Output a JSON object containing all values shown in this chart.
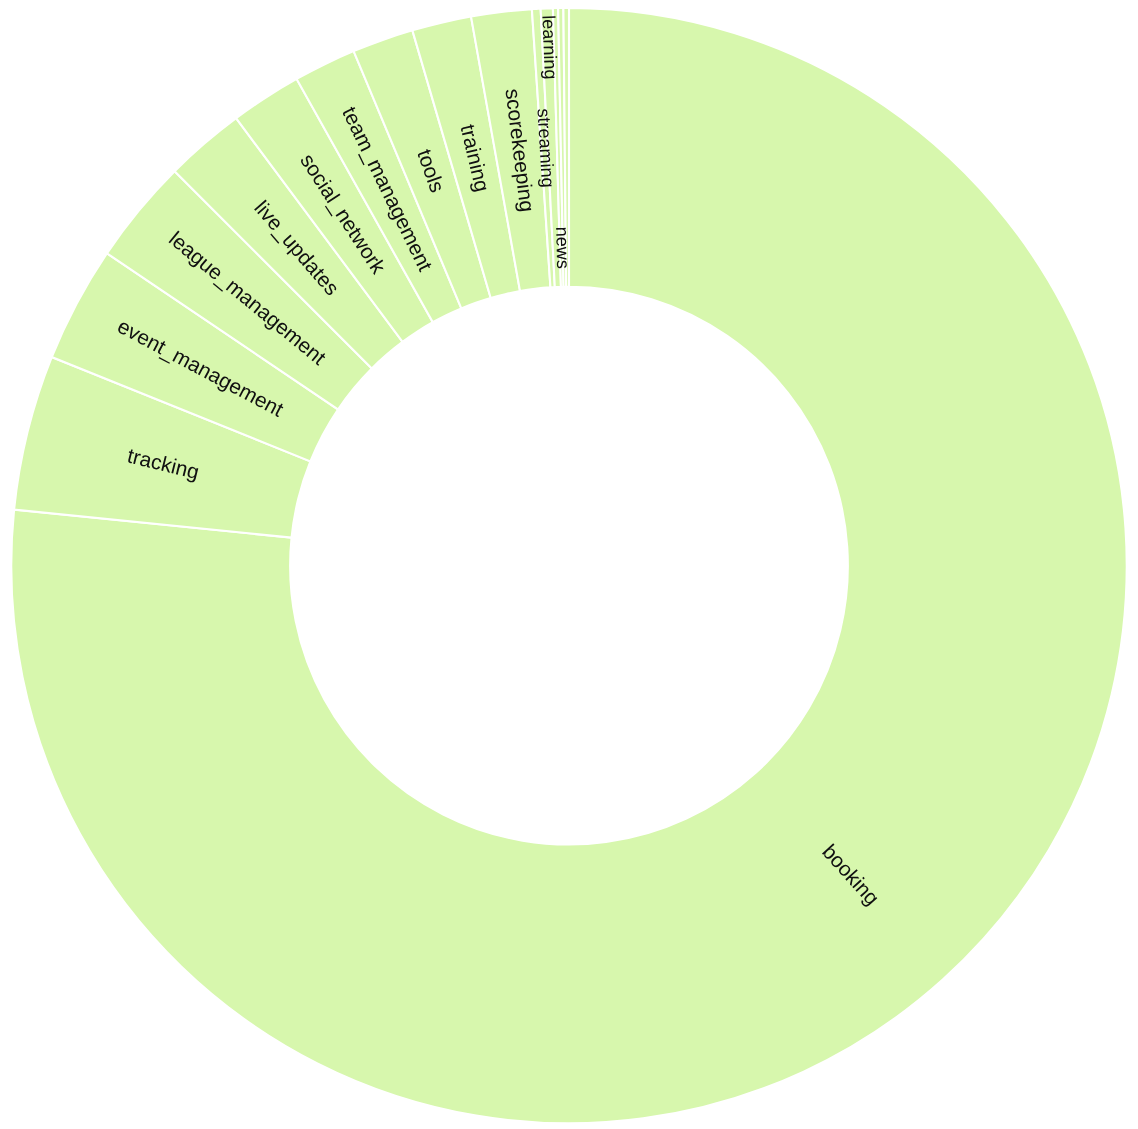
{
  "chart_data": {
    "type": "donut",
    "categories": [
      "booking",
      "tracking",
      "event_management",
      "league_management",
      "live_updates",
      "social_network",
      "team_management",
      "tools",
      "training",
      "scorekeeping",
      "streaming",
      "learning",
      "news",
      null,
      null
    ],
    "values": [
      76.6,
      4.5,
      3.36,
      3.04,
      2.32,
      2.06,
      1.81,
      1.78,
      1.72,
      1.75,
      0.25,
      0.35,
      0.15,
      0.15,
      0.16
    ],
    "colors": [
      "#d7f7ad",
      "#d7f7ad",
      "#d7f7ad",
      "#d7f7ad",
      "#d7f7ad",
      "#d7f7ad",
      "#d7f7ad",
      "#d7f7ad",
      "#d7f7ad",
      "#d7f7ad",
      "#d7f7ad",
      "#d7f7ad",
      "#d7f7ad",
      "#d7f7ad",
      "#d7f7ad"
    ],
    "legend": false
  }
}
